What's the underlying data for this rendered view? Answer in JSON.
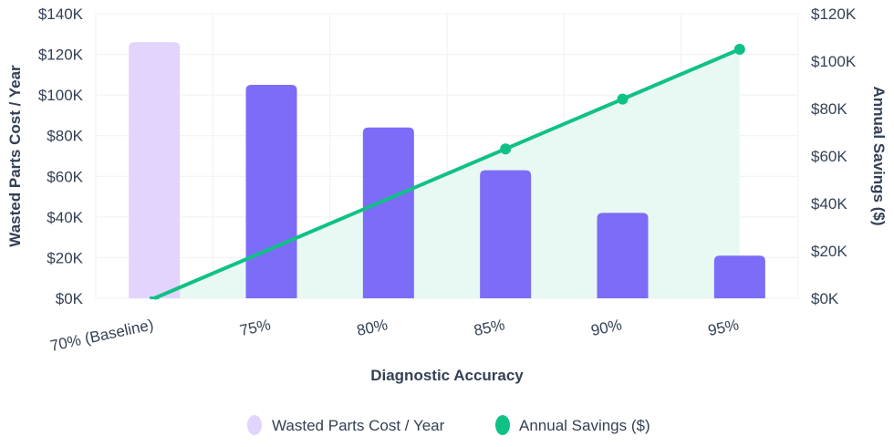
{
  "chart_data": {
    "type": "bar",
    "categories": [
      "70% (Baseline)",
      "75%",
      "80%",
      "85%",
      "90%",
      "95%"
    ],
    "series": [
      {
        "name": "Wasted Parts Cost / Year",
        "type": "bar",
        "axis": "left",
        "values": [
          126000,
          105000,
          84000,
          63000,
          42000,
          21000
        ],
        "colors": [
          "#e2d4fd",
          "#7c6cf8",
          "#7c6cf8",
          "#7c6cf8",
          "#7c6cf8",
          "#7c6cf8"
        ],
        "legend_color": "#e2d4fd"
      },
      {
        "name": "Annual Savings ($)",
        "type": "area-line",
        "axis": "right",
        "values": [
          0,
          21000,
          42000,
          63000,
          84000,
          105000
        ],
        "color": "#10c185",
        "fill": "#e8f8f2"
      }
    ],
    "xlabel": "Diagnostic Accuracy",
    "ylabel": "Wasted Parts Cost / Year",
    "y2label": "Annual Savings ($)",
    "ylim": [
      0,
      140000
    ],
    "y2lim": [
      0,
      120000
    ],
    "yticks": [
      "$0K",
      "$20K",
      "$40K",
      "$60K",
      "$80K",
      "$100K",
      "$120K",
      "$140K"
    ],
    "y2ticks": [
      "$0K",
      "$20K",
      "$40K",
      "$60K",
      "$80K",
      "$100K",
      "$120K"
    ],
    "grid": true,
    "legend_position": "bottom-center"
  }
}
